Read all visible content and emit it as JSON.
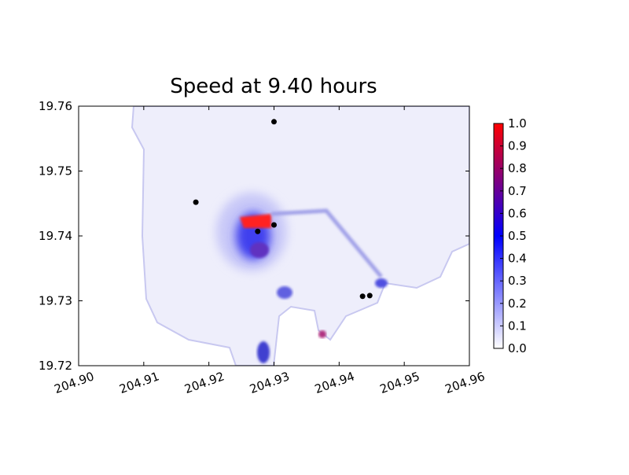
{
  "chart_data": {
    "type": "scatter",
    "title": "Speed at 9.40 hours",
    "series": [
      {
        "color": "#000000",
        "x": [
          204.93,
          204.918,
          204.93,
          204.9275,
          204.9436,
          204.9447
        ],
        "values": [
          19.7576,
          19.7452,
          19.7417,
          19.7407,
          19.7307,
          19.7308
        ]
      }
    ],
    "xlim": [
      204.9,
      204.96
    ],
    "xticks": [
      {
        "value": 204.9,
        "label": "204.90"
      },
      204.91,
      204.92,
      204.93,
      204.94,
      204.95,
      204.96
    ],
    "ylim": [
      19.72,
      19.76
    ],
    "yticks": [
      19.72,
      19.73,
      19.74,
      19.75,
      19.76
    ],
    "colorbar": {
      "colors": [
        "#ffffff",
        "#0000ff",
        "#ff0000"
      ],
      "lim": [
        0,
        1
      ],
      "ticks": [
        {
          "value": 0,
          "label": "0.0"
        },
        {
          "value": 0.1,
          "label": "0.1"
        },
        {
          "value": 0.2,
          "label": "0.2"
        },
        {
          "value": 0.3,
          "label": "0.3"
        },
        {
          "value": 0.4,
          "label": "0.4"
        },
        {
          "value": 0.5,
          "label": "0.5"
        },
        {
          "value": 0.6,
          "label": "0.6"
        },
        {
          "value": 0.7,
          "label": "0.7"
        },
        {
          "value": 0.8,
          "label": "0.8"
        },
        {
          "value": 0.9,
          "label": "0.9"
        },
        {
          "value": 1,
          "label": "1.0"
        }
      ]
    }
  }
}
